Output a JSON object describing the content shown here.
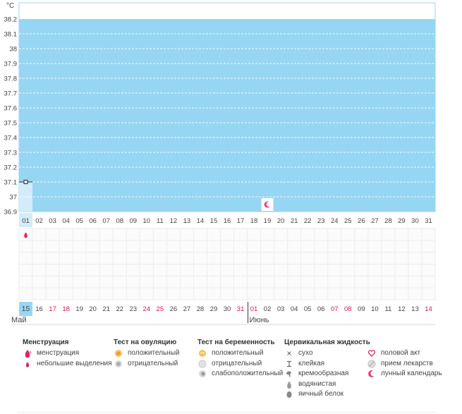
{
  "chart_data": {
    "type": "line",
    "unit_label": "°C",
    "yticks": [
      "38.2",
      "38.1",
      "38",
      "37.9",
      "37.8",
      "37.7",
      "37.6",
      "37.5",
      "37.4",
      "37.3",
      "37.2",
      "37.1",
      "37",
      "36.9"
    ],
    "ylim": [
      36.9,
      38.2
    ],
    "cycle_days": [
      "01",
      "02",
      "03",
      "04",
      "05",
      "06",
      "07",
      "08",
      "09",
      "10",
      "11",
      "12",
      "13",
      "14",
      "15",
      "16",
      "17",
      "18",
      "19",
      "20",
      "21",
      "22",
      "23",
      "24",
      "25",
      "26",
      "27",
      "28",
      "29",
      "30",
      "31"
    ],
    "dates": [
      {
        "d": "15",
        "weekend": false
      },
      {
        "d": "16",
        "weekend": false
      },
      {
        "d": "17",
        "weekend": true
      },
      {
        "d": "18",
        "weekend": true
      },
      {
        "d": "19",
        "weekend": false
      },
      {
        "d": "20",
        "weekend": false
      },
      {
        "d": "21",
        "weekend": false
      },
      {
        "d": "22",
        "weekend": false
      },
      {
        "d": "23",
        "weekend": false
      },
      {
        "d": "24",
        "weekend": true
      },
      {
        "d": "25",
        "weekend": true
      },
      {
        "d": "26",
        "weekend": false
      },
      {
        "d": "27",
        "weekend": false
      },
      {
        "d": "28",
        "weekend": false
      },
      {
        "d": "29",
        "weekend": false
      },
      {
        "d": "30",
        "weekend": false
      },
      {
        "d": "31",
        "weekend": true
      },
      {
        "d": "01",
        "weekend": true
      },
      {
        "d": "02",
        "weekend": false
      },
      {
        "d": "03",
        "weekend": false
      },
      {
        "d": "04",
        "weekend": false
      },
      {
        "d": "05",
        "weekend": false
      },
      {
        "d": "06",
        "weekend": false
      },
      {
        "d": "07",
        "weekend": true
      },
      {
        "d": "08",
        "weekend": true
      },
      {
        "d": "09",
        "weekend": false
      },
      {
        "d": "10",
        "weekend": false
      },
      {
        "d": "11",
        "weekend": false
      },
      {
        "d": "12",
        "weekend": false
      },
      {
        "d": "13",
        "weekend": false
      },
      {
        "d": "14",
        "weekend": true
      }
    ],
    "months": [
      {
        "label": "Май",
        "start_index": 0
      },
      {
        "label": "Июнь",
        "start_index": 17
      }
    ],
    "series": [
      {
        "points": [
          {
            "day": "01",
            "value": 37.1
          }
        ]
      }
    ],
    "menstruation_days": [
      "01"
    ],
    "moon_days": [
      "19"
    ],
    "highlight_day": "01",
    "grid": true,
    "colors": {
      "plot_bg": "#97d6f2",
      "highlight_col": "#d2ecf9",
      "grid_dash": "#ffffff",
      "weekend_text": "#d4145a",
      "text": "#444444",
      "moon": "#e8417a"
    }
  },
  "legend": {
    "groups": [
      {
        "title": "Менструация",
        "items": [
          {
            "icon": "drop-icon",
            "label": "менструация"
          },
          {
            "icon": "small-drop-icon",
            "label": "небольшие выделения"
          }
        ]
      },
      {
        "title": "Тест на овуляцию",
        "items": [
          {
            "icon": "ovulation-positive-icon",
            "label": "положительный"
          },
          {
            "icon": "ovulation-negative-icon",
            "label": "отрицательный"
          }
        ]
      },
      {
        "title": "Тест на беременность",
        "items": [
          {
            "icon": "pregnancy-positive-icon",
            "label": "положительный"
          },
          {
            "icon": "pregnancy-negative-icon",
            "label": "отрицательный"
          },
          {
            "icon": "pregnancy-weak-icon",
            "label": "слабоположительный"
          }
        ]
      },
      {
        "title": "Цервикальная жидкость",
        "items": [
          {
            "icon": "dry-icon",
            "label": "сухо"
          },
          {
            "icon": "sticky-icon",
            "label": "клейкая"
          },
          {
            "icon": "creamy-icon",
            "label": "кремообразная"
          },
          {
            "icon": "watery-icon",
            "label": "водянистая"
          },
          {
            "icon": "egg-white-icon",
            "label": "яичный белок"
          }
        ]
      },
      {
        "title": "",
        "items": [
          {
            "icon": "heart-icon",
            "label": "половой акт"
          },
          {
            "icon": "pill-icon",
            "label": "прием лекарств"
          },
          {
            "icon": "moon-icon",
            "label": "лунный календарь"
          }
        ]
      }
    ]
  }
}
